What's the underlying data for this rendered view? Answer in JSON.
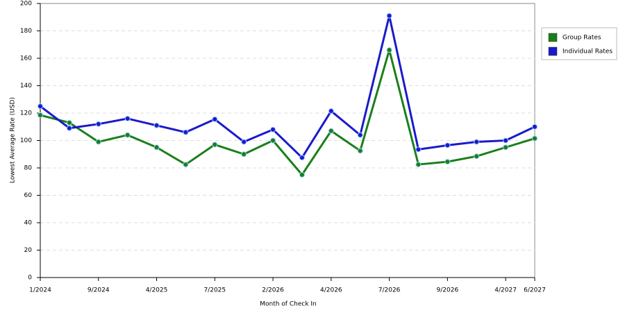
{
  "chart_data": {
    "type": "line",
    "x_label": "Month of Check In",
    "y_label": "Lowest Average Rate (USD)",
    "categories": [
      "1/2024",
      null,
      "9/2024",
      null,
      "4/2025",
      null,
      "7/2025",
      null,
      "2/2026",
      null,
      "4/2026",
      null,
      "7/2026",
      null,
      "9/2026",
      null,
      "4/2027",
      "6/2027"
    ],
    "series": [
      {
        "name": "Group Rates",
        "color": "#1a7f1a",
        "values": [
          118.5,
          113,
          99,
          104,
          95,
          82.5,
          97,
          90,
          100,
          75,
          107,
          92.5,
          166,
          82.5,
          84.5,
          88.5,
          95,
          101.5
        ]
      },
      {
        "name": "Individual Rates",
        "color": "#1a1acc",
        "values": [
          125,
          109,
          112,
          116,
          111,
          106,
          115.5,
          99,
          108,
          87.5,
          121.5,
          104,
          191,
          93.5,
          96.5,
          99,
          100,
          110
        ]
      }
    ],
    "ylim": [
      0,
      200
    ],
    "yticks": [
      0,
      20,
      40,
      60,
      80,
      100,
      120,
      140,
      160,
      180,
      200
    ],
    "grid": true,
    "legend": "top-right"
  }
}
